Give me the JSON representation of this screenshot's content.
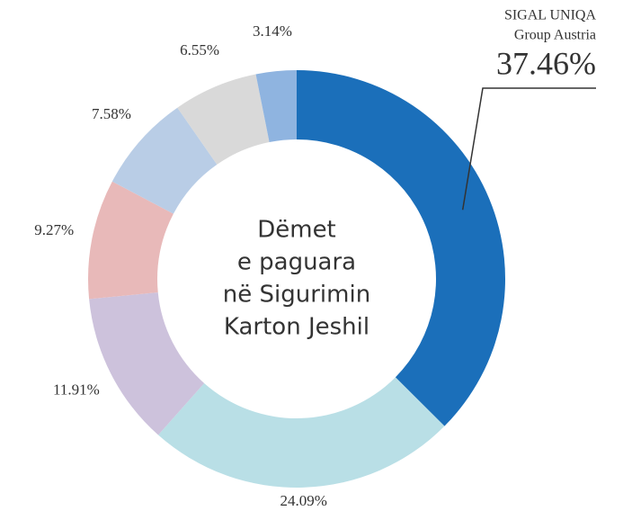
{
  "chart_data": {
    "type": "donut",
    "center_text": [
      "Dëmet",
      "e paguara",
      "në Sigurimin",
      "Karton Jeshil"
    ],
    "categories": [
      [
        "SIGAL UNIQA",
        "Group Austria"
      ],
      null,
      null,
      null,
      null,
      null,
      null
    ],
    "values": [
      37.46,
      24.09,
      11.91,
      9.27,
      7.58,
      6.55,
      3.14
    ],
    "value_labels": [
      "37.46%",
      "24.09%",
      "11.91%",
      "9.27%",
      "7.58%",
      "6.55%",
      "3.14%"
    ],
    "colors": [
      "#1b6fba",
      "#b9dfe6",
      "#cdc2dc",
      "#e8b9b9",
      "#b9cde6",
      "#d9d9d9",
      "#8fb4e0"
    ]
  }
}
